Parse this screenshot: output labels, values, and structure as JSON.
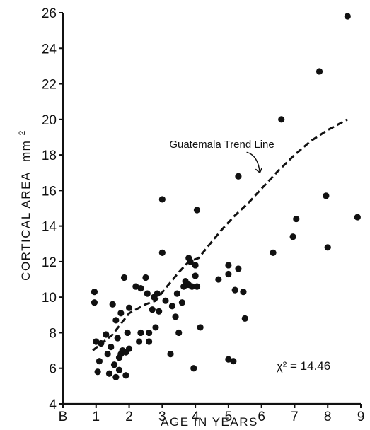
{
  "chart_data": {
    "type": "scatter",
    "title": "",
    "xlabel": "AGE IN YEARS",
    "ylabel": "CORTICAL AREA",
    "ylabel_unit": "mm",
    "ylabel_unit_sup": "2",
    "xlim": [
      0,
      9
    ],
    "ylim": [
      4,
      26
    ],
    "x_ticks": [
      0,
      1,
      2,
      3,
      4,
      5,
      6,
      7,
      8,
      9
    ],
    "x_tick_labels": [
      "B",
      "1",
      "2",
      "3",
      "4",
      "5",
      "6",
      "7",
      "8",
      "9"
    ],
    "y_ticks": [
      4,
      6,
      8,
      10,
      12,
      14,
      16,
      18,
      20,
      22,
      24,
      26
    ],
    "y_tick_labels": [
      "4",
      "6",
      "8",
      "10",
      "12",
      "14",
      "16",
      "18",
      "20",
      "22",
      "24",
      "26"
    ],
    "grid": false,
    "points": [
      [
        0.95,
        10.3
      ],
      [
        0.95,
        9.7
      ],
      [
        1.0,
        7.5
      ],
      [
        1.05,
        5.8
      ],
      [
        1.1,
        6.4
      ],
      [
        1.15,
        7.4
      ],
      [
        1.3,
        7.9
      ],
      [
        1.35,
        6.8
      ],
      [
        1.4,
        5.7
      ],
      [
        1.45,
        7.2
      ],
      [
        1.5,
        9.6
      ],
      [
        1.55,
        6.2
      ],
      [
        1.6,
        8.7
      ],
      [
        1.6,
        5.5
      ],
      [
        1.65,
        7.7
      ],
      [
        1.7,
        6.6
      ],
      [
        1.7,
        5.9
      ],
      [
        1.75,
        9.1
      ],
      [
        1.75,
        6.8
      ],
      [
        1.8,
        7.0
      ],
      [
        1.85,
        11.1
      ],
      [
        1.9,
        6.9
      ],
      [
        1.9,
        5.6
      ],
      [
        1.95,
        8.0
      ],
      [
        2.0,
        9.4
      ],
      [
        2.0,
        7.1
      ],
      [
        2.2,
        10.6
      ],
      [
        2.3,
        7.5
      ],
      [
        2.35,
        8.0
      ],
      [
        2.35,
        10.5
      ],
      [
        2.5,
        11.1
      ],
      [
        2.55,
        10.2
      ],
      [
        2.6,
        8.0
      ],
      [
        2.6,
        7.5
      ],
      [
        2.7,
        9.3
      ],
      [
        2.75,
        10.0
      ],
      [
        2.8,
        8.3
      ],
      [
        2.85,
        10.2
      ],
      [
        2.9,
        9.2
      ],
      [
        3.0,
        15.5
      ],
      [
        3.0,
        12.5
      ],
      [
        3.1,
        9.8
      ],
      [
        3.25,
        6.8
      ],
      [
        3.3,
        9.5
      ],
      [
        3.4,
        8.9
      ],
      [
        3.45,
        10.2
      ],
      [
        3.5,
        8.0
      ],
      [
        3.6,
        9.7
      ],
      [
        3.65,
        10.6
      ],
      [
        3.7,
        10.9
      ],
      [
        3.8,
        12.2
      ],
      [
        3.8,
        10.7
      ],
      [
        3.85,
        12.0
      ],
      [
        3.9,
        10.6
      ],
      [
        3.95,
        6.0
      ],
      [
        4.0,
        11.2
      ],
      [
        4.0,
        11.8
      ],
      [
        4.05,
        14.9
      ],
      [
        4.05,
        10.6
      ],
      [
        4.15,
        8.3
      ],
      [
        4.7,
        11.0
      ],
      [
        5.0,
        11.3
      ],
      [
        5.0,
        11.8
      ],
      [
        5.0,
        6.5
      ],
      [
        5.15,
        6.4
      ],
      [
        5.2,
        10.4
      ],
      [
        5.3,
        11.6
      ],
      [
        5.3,
        16.8
      ],
      [
        5.45,
        10.3
      ],
      [
        5.5,
        8.8
      ],
      [
        6.35,
        12.5
      ],
      [
        6.6,
        20.0
      ],
      [
        6.95,
        13.4
      ],
      [
        7.05,
        14.4
      ],
      [
        7.75,
        22.7
      ],
      [
        7.95,
        15.7
      ],
      [
        8.0,
        12.8
      ],
      [
        8.6,
        25.8
      ],
      [
        8.9,
        14.5
      ]
    ],
    "series": [
      {
        "name": "Guatemala Trend Line",
        "style": "dashed",
        "x": [
          0.9,
          1.5,
          2.0,
          2.5,
          2.8,
          3.1,
          3.5,
          3.8,
          4.1,
          4.4,
          4.8,
          5.2,
          5.6,
          6.0,
          6.5,
          7.0,
          7.5,
          8.0,
          8.6
        ],
        "y": [
          7.0,
          7.9,
          9.1,
          9.6,
          9.8,
          10.5,
          11.4,
          12.0,
          12.2,
          12.9,
          13.8,
          14.6,
          15.3,
          16.1,
          17.1,
          18.0,
          18.8,
          19.4,
          20.0
        ]
      }
    ],
    "annotations": [
      {
        "text": "Guatemala Trend Line",
        "x": 4.8,
        "y": 18.4
      },
      {
        "text": "χ² = 14.46",
        "x": 6.45,
        "y": 5.9
      }
    ]
  }
}
